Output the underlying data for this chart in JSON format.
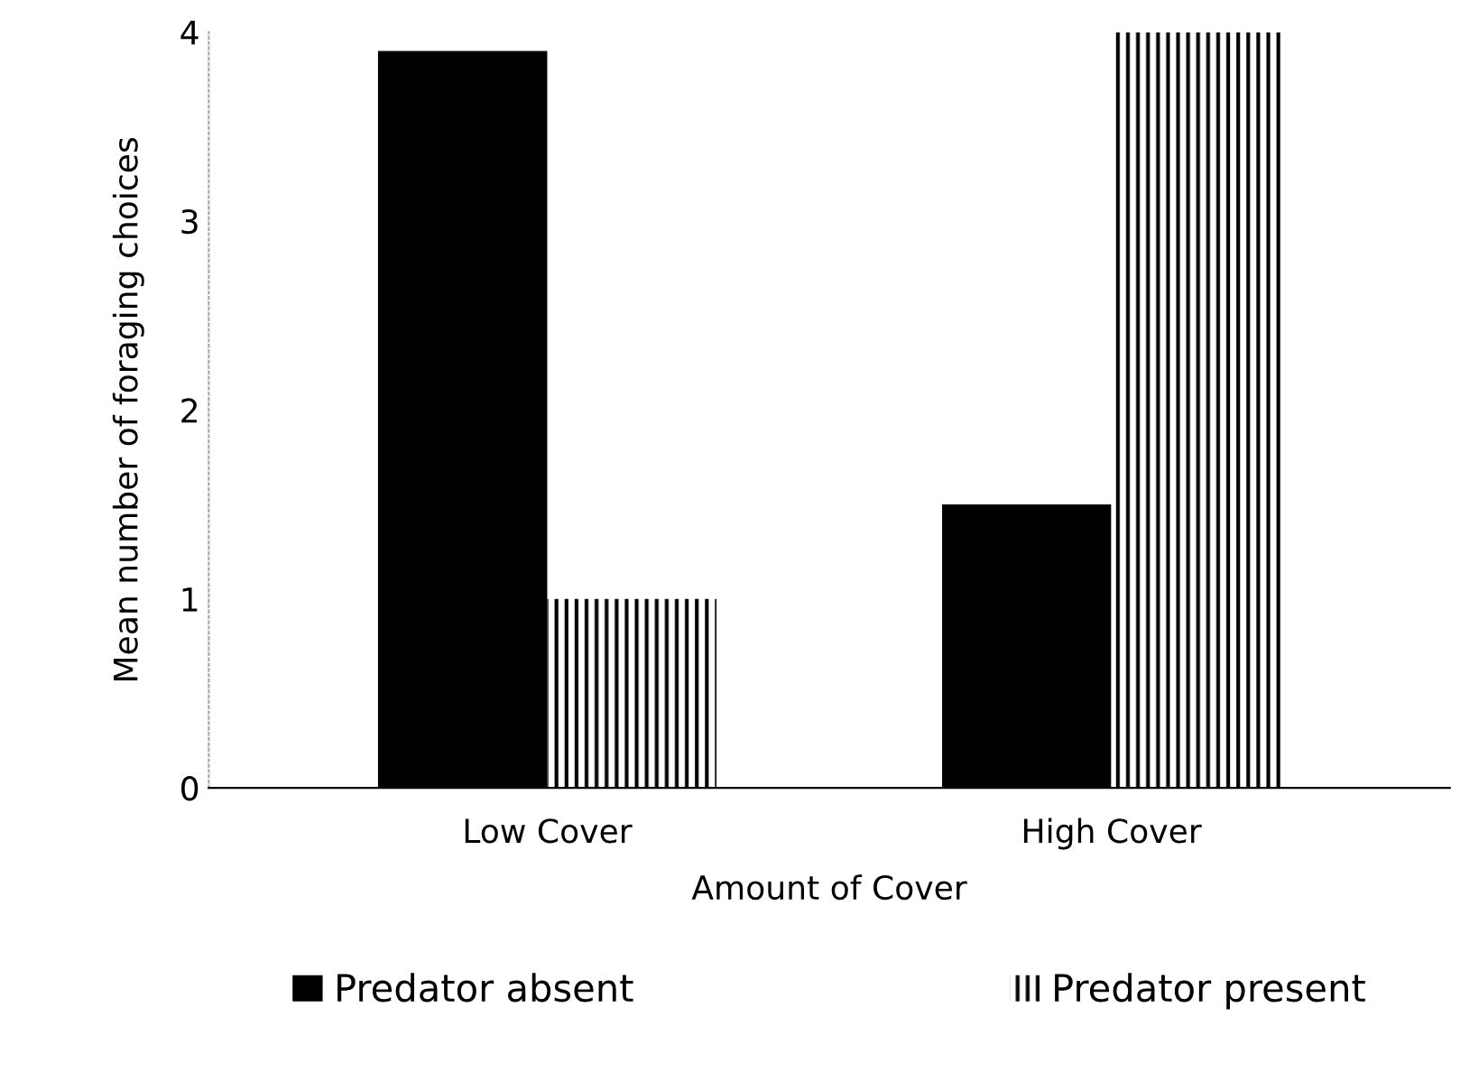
{
  "chart_data": {
    "type": "bar",
    "xlabel": "Amount of Cover",
    "ylabel": "Mean number of foraging choices",
    "categories": [
      "Low Cover",
      "High Cover"
    ],
    "series": [
      {
        "name": "Predator absent",
        "color": "#000000",
        "values": [
          3.9,
          1.5
        ]
      },
      {
        "name": "Predator present",
        "color": "#000000",
        "values": [
          1.0,
          4.0
        ]
      }
    ],
    "ylim": [
      0,
      4
    ],
    "yticks": [
      0,
      1,
      2,
      3,
      4
    ],
    "grid": false,
    "legend": "bottom"
  }
}
